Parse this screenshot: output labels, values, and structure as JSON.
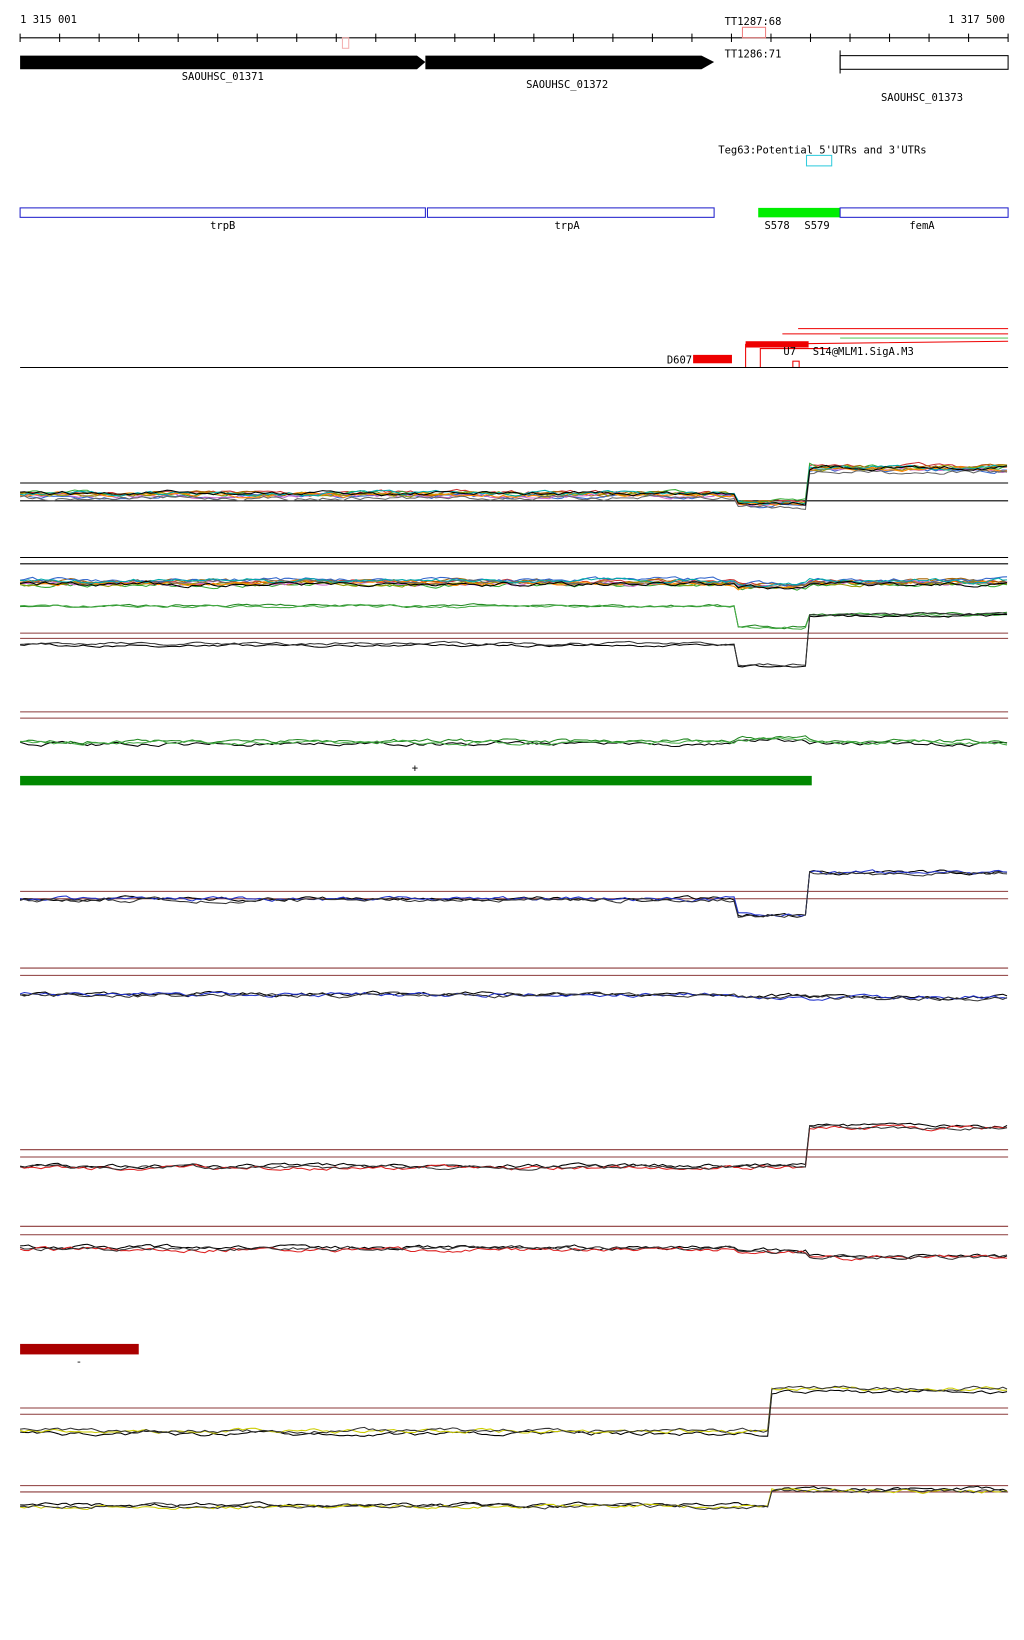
{
  "ruler": {
    "start": "1 315 001",
    "end": "1 317 500"
  },
  "features": {
    "tt_top": "TT1287:68",
    "tt_mid": "TT1286:71",
    "gene1": "SAOUHSC_01371",
    "gene2": "SAOUHSC_01372",
    "gene3": "SAOUHSC_01373",
    "teg": "Teg63:Potential 5'UTRs and 3'UTRs"
  },
  "genes": {
    "trpB": "trpB",
    "trpA": "trpA",
    "s578": "S578",
    "s579": "S579",
    "femA": "femA"
  },
  "regions": {
    "d607": "D607",
    "u7": "U7",
    "siga": "S14@MLM1.SigA.M3"
  },
  "strands": {
    "plus": "+",
    "minus": "-"
  }
}
